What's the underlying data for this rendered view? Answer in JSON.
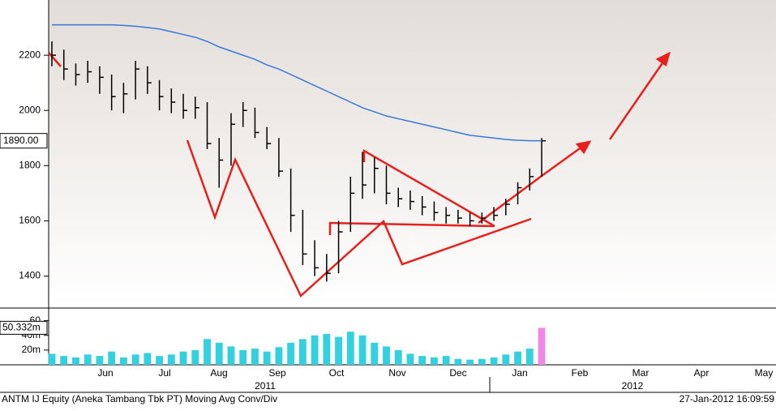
{
  "chart_data": {
    "type": "ohlc",
    "footer_left": "ANTM IJ Equity (Aneka Tambang Tbk PT) Moving Avg Conv/Div",
    "footer_right": "27-Jan-2012 16:09:59",
    "months": [
      "Jun",
      "Jul",
      "Aug",
      "Sep",
      "Oct",
      "Nov",
      "Dec",
      "Jan",
      "Feb",
      "Mar",
      "Apr",
      "May"
    ],
    "years": [
      "2011",
      "2012"
    ],
    "ylim": [
      1290,
      2400
    ],
    "yticks": [
      1400,
      1600,
      1800,
      2000,
      2200
    ],
    "high": [
      2250,
      2220,
      2170,
      2180,
      2160,
      2130,
      2100,
      2180,
      2160,
      2110,
      2080,
      2060,
      2050,
      2030,
      1900,
      1990,
      2030,
      2010,
      1940,
      1900,
      1790,
      1640,
      1530,
      1480,
      1600,
      1760,
      1850,
      1830,
      1800,
      1720,
      1710,
      1690,
      1670,
      1650,
      1640,
      1630,
      1630,
      1650,
      1680,
      1740,
      1790,
      1900
    ],
    "low": [
      2160,
      2110,
      2090,
      2100,
      2060,
      2000,
      1990,
      2040,
      2060,
      2000,
      1990,
      1970,
      1970,
      1860,
      1720,
      1800,
      1940,
      1900,
      1860,
      1760,
      1560,
      1440,
      1400,
      1380,
      1410,
      1560,
      1680,
      1700,
      1660,
      1650,
      1640,
      1620,
      1600,
      1590,
      1590,
      1580,
      1590,
      1600,
      1620,
      1660,
      1710,
      1760
    ],
    "close": [
      2200,
      2150,
      2130,
      2140,
      2120,
      2050,
      2060,
      2150,
      2100,
      2050,
      2030,
      2000,
      2010,
      1880,
      1820,
      1950,
      2000,
      1920,
      1880,
      1780,
      1620,
      1480,
      1430,
      1410,
      1560,
      1700,
      1730,
      1790,
      1700,
      1680,
      1670,
      1650,
      1630,
      1620,
      1610,
      1600,
      1610,
      1620,
      1660,
      1720,
      1760,
      1890
    ],
    "moving_average": {
      "color": "#3a78d8",
      "values": [
        2310,
        2310,
        2310,
        2310,
        2310,
        2310,
        2308,
        2305,
        2300,
        2295,
        2285,
        2275,
        2265,
        2250,
        2230,
        2215,
        2200,
        2185,
        2165,
        2150,
        2130,
        2110,
        2090,
        2070,
        2050,
        2030,
        2010,
        1995,
        1980,
        1970,
        1960,
        1950,
        1940,
        1930,
        1920,
        1910,
        1905,
        1900,
        1895,
        1892,
        1890,
        1890
      ]
    },
    "last_price": {
      "value": 1890,
      "label": "1890.00"
    },
    "volume": {
      "color": "#33d0e0",
      "values": [
        15,
        12,
        10,
        14,
        12,
        18,
        10,
        14,
        16,
        12,
        14,
        18,
        20,
        35,
        30,
        25,
        20,
        22,
        18,
        24,
        30,
        35,
        40,
        42,
        38,
        45,
        40,
        30,
        25,
        20,
        15,
        12,
        10,
        12,
        8,
        7,
        8,
        10,
        14,
        18,
        22,
        50.332
      ]
    },
    "vlim": [
      0,
      75
    ],
    "vticks": [
      {
        "value": 20,
        "label": "20m"
      },
      {
        "value": 40,
        "label": "40m"
      },
      {
        "value": 60,
        "label": "60"
      }
    ],
    "last_volume": {
      "value": 50.332,
      "label": "50.332m"
    }
  }
}
